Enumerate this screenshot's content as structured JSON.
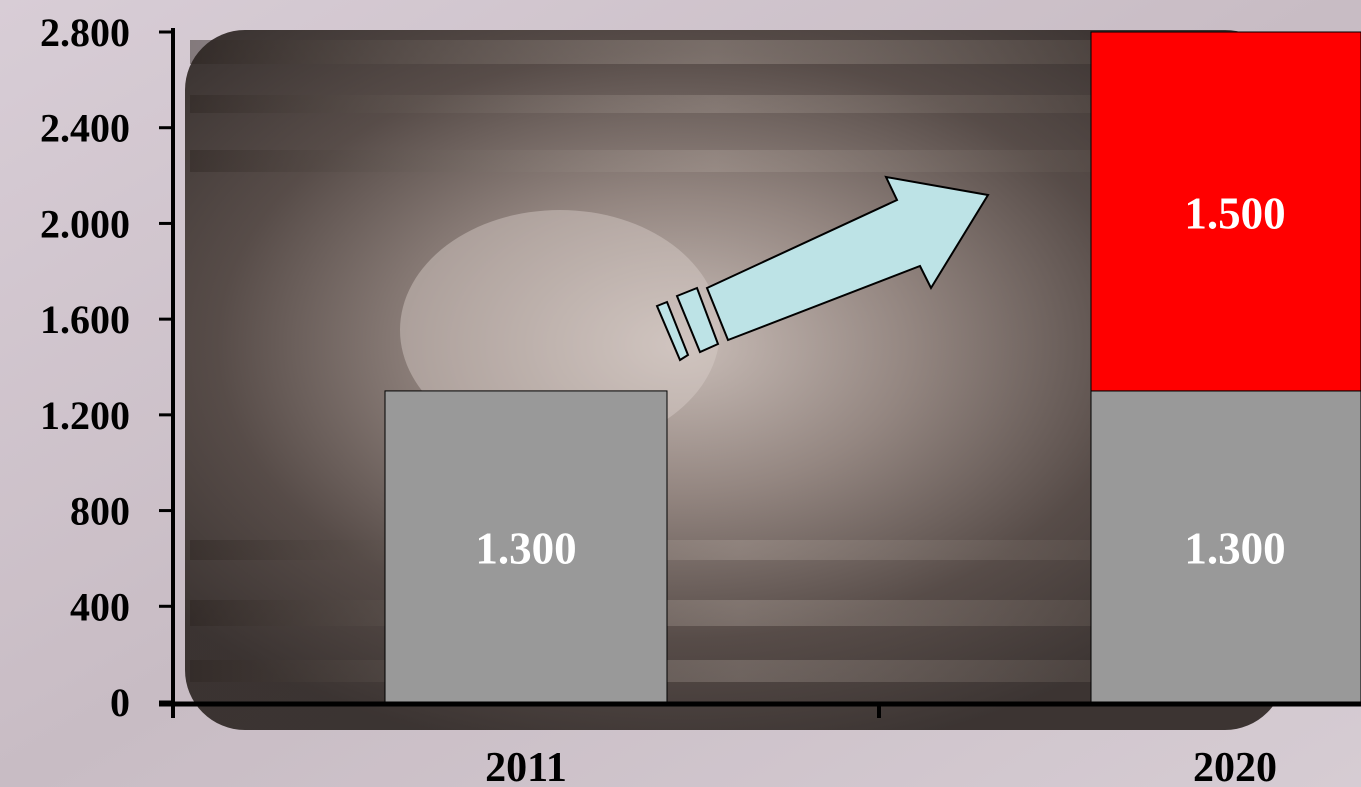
{
  "chart_data": {
    "type": "bar",
    "stacked": true,
    "categories": [
      "2011",
      "2020"
    ],
    "series": [
      {
        "values": [
          1300,
          1300
        ],
        "labels": [
          "1.300",
          "1.300"
        ],
        "color": "#999999"
      },
      {
        "values": [
          0,
          1500
        ],
        "labels": [
          "",
          "1.500"
        ],
        "color": "#ff0000"
      }
    ],
    "yticks": [
      0,
      400,
      800,
      1200,
      1600,
      2000,
      2400,
      2800
    ],
    "ytick_labels": [
      "0",
      "400",
      "800",
      "1.200",
      "1.600",
      "2.000",
      "2.400",
      "2.800"
    ],
    "ylim": [
      0,
      2800
    ],
    "grid": false,
    "legend": "none",
    "title": "",
    "xlabel": "",
    "ylabel": "",
    "colors": {
      "axis": "#000000",
      "data_label": "#ffffff",
      "tick_label": "#000000",
      "arrow_fill": "#bde3e6",
      "bar_edge": "#000000"
    },
    "annotations": [
      {
        "type": "arrow",
        "direction": "up-right",
        "from_category": "2011",
        "to_category": "2020",
        "icon": "growth-arrow-icon"
      }
    ]
  }
}
